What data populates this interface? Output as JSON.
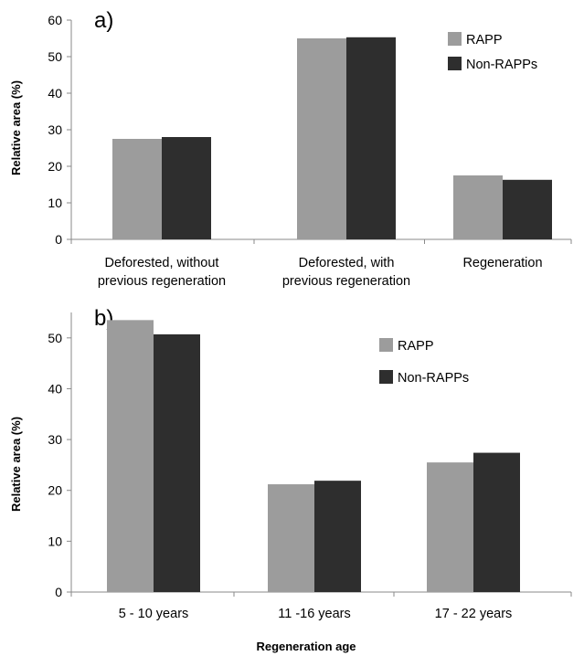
{
  "colors": {
    "rapp": "#9c9c9c",
    "non_rapps": "#2e2e2e"
  },
  "chart_data": [
    {
      "type": "bar",
      "panel": "a)",
      "categories": [
        [
          "Deforested, without",
          "previous regeneration"
        ],
        [
          "Deforested, with",
          "previous regeneration"
        ],
        [
          "Regeneration"
        ]
      ],
      "series": [
        {
          "name": "RAPP",
          "values": [
            27.5,
            55,
            17.5
          ]
        },
        {
          "name": "Non-RAPPs",
          "values": [
            28,
            55.3,
            16.3
          ]
        }
      ],
      "ylabel": "Relative area (%)",
      "xlabel": "",
      "ylim": [
        0,
        60
      ],
      "yticks": [
        0,
        10,
        20,
        30,
        40,
        50,
        60
      ],
      "legend": "top-right",
      "grid": false
    },
    {
      "type": "bar",
      "panel": "b)",
      "categories": [
        [
          "5 - 10 years"
        ],
        [
          "11 -16 years"
        ],
        [
          "17 - 22 years"
        ]
      ],
      "series": [
        {
          "name": "RAPP",
          "values": [
            53.5,
            21.2,
            25.5
          ]
        },
        {
          "name": "Non-RAPPs",
          "values": [
            50.7,
            21.9,
            27.4
          ]
        }
      ],
      "ylabel": "Relative area (%)",
      "xlabel": "Regeneration age",
      "ylim": [
        0,
        55
      ],
      "yticks": [
        0,
        10,
        20,
        30,
        40,
        50
      ],
      "legend": "top-right",
      "grid": false
    }
  ]
}
